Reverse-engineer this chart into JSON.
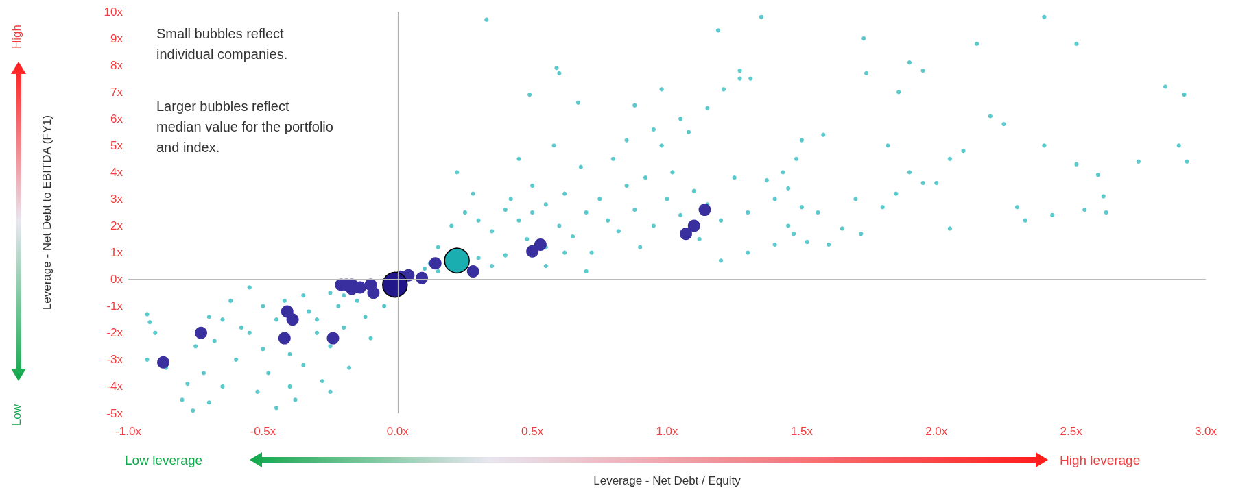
{
  "chart_data": {
    "type": "bubble",
    "xlabel": "Leverage - Net Debt / Equity",
    "ylabel": "Leverage - Net Debt to EBITDA (FY1)",
    "xlim": [
      -1,
      3
    ],
    "ylim": [
      -5,
      10
    ],
    "xticks": [
      {
        "value": -1,
        "label": "-1.0x"
      },
      {
        "value": -0.5,
        "label": "-0.5x"
      },
      {
        "value": 0,
        "label": "0.0x"
      },
      {
        "value": 0.5,
        "label": "0.5x"
      },
      {
        "value": 1,
        "label": "1.0x"
      },
      {
        "value": 1.5,
        "label": "1.5x"
      },
      {
        "value": 2,
        "label": "2.0x"
      },
      {
        "value": 2.5,
        "label": "2.5x"
      },
      {
        "value": 3,
        "label": "3.0x"
      }
    ],
    "yticks": [
      {
        "value": -5,
        "label": "-5x"
      },
      {
        "value": -4,
        "label": "-4x"
      },
      {
        "value": -3,
        "label": "-3x"
      },
      {
        "value": -2,
        "label": "-2x"
      },
      {
        "value": -1,
        "label": "-1x"
      },
      {
        "value": 0,
        "label": "0x"
      },
      {
        "value": 1,
        "label": "1x"
      },
      {
        "value": 2,
        "label": "2x"
      },
      {
        "value": 3,
        "label": "3x"
      },
      {
        "value": 4,
        "label": "4x"
      },
      {
        "value": 5,
        "label": "5x"
      },
      {
        "value": 6,
        "label": "6x"
      },
      {
        "value": 7,
        "label": "7x"
      },
      {
        "value": 8,
        "label": "8x"
      },
      {
        "value": 9,
        "label": "9x"
      },
      {
        "value": 10,
        "label": "10x"
      }
    ],
    "grid": false,
    "marker": "circle",
    "ref_lines": [
      {
        "axis": "x",
        "value": 0,
        "color": "#b0b0b0"
      },
      {
        "axis": "y",
        "value": 0,
        "color": "#bababa"
      }
    ],
    "annotations": [
      "Small bubbles reflect\nindividual companies.",
      "Larger bubbles reflect\nmedian value for the portfolio\nand index.",
      "High",
      "Low",
      "Low leverage",
      "High leverage"
    ],
    "series": [
      {
        "color": "#5cc9cc",
        "x": [
          0.33,
          1.35,
          2.4,
          1.19,
          1.73,
          2.52,
          2.15,
          0.59,
          0.6,
          1.9,
          1.27,
          1.27,
          1.31,
          1.21,
          1.74,
          1.95,
          2.85,
          2.92,
          0.98,
          0.49,
          0.67,
          0.88,
          1.05,
          1.15,
          1.86,
          2.2,
          2.25,
          1.5,
          1.58,
          1.82,
          2.4,
          2.9,
          2.52,
          2.6,
          2.93,
          2.75,
          2.05,
          2.1,
          1.9,
          1.95,
          2.0,
          1.85,
          2.3,
          2.43,
          2.55,
          2.63,
          2.62,
          2.05,
          2.33,
          1.72,
          1.6,
          1.52,
          1.65,
          1.45,
          1.47,
          1.5,
          1.56,
          1.8,
          1.7,
          1.45,
          1.4,
          1.43,
          1.48,
          1.37,
          1.25,
          1.3,
          1.2,
          1.2,
          1.3,
          1.4,
          0.15,
          0.2,
          0.25,
          0.22,
          0.28,
          0.3,
          0.35,
          0.4,
          0.42,
          0.45,
          0.48,
          0.5,
          0.55,
          0.55,
          0.6,
          0.62,
          0.65,
          0.68,
          0.7,
          0.72,
          0.75,
          0.78,
          0.8,
          0.82,
          0.85,
          0.88,
          0.9,
          0.92,
          0.95,
          0.98,
          1.0,
          1.02,
          1.05,
          1.08,
          1.1,
          1.12,
          0.4,
          0.35,
          0.3,
          0.58,
          0.45,
          0.85,
          0.95,
          0.7,
          0.55,
          1.15,
          0.5,
          0.62,
          0.1,
          0.12,
          0.18,
          -0.2,
          -0.25,
          0.15,
          -0.93,
          -0.92,
          -0.93,
          -0.9,
          -0.86,
          -0.8,
          -0.76,
          -0.7,
          -0.78,
          -0.75,
          -0.7,
          -0.72,
          -0.68,
          -0.65,
          -0.6,
          -0.58,
          -0.55,
          -0.52,
          -0.5,
          -0.48,
          -0.45,
          -0.45,
          -0.42,
          -0.4,
          -0.38,
          -0.35,
          -0.33,
          -0.3,
          -0.28,
          -0.25,
          -0.22,
          -0.2,
          -0.18,
          -0.15,
          -0.12,
          -0.1,
          -0.05,
          -0.5,
          -0.55,
          -0.35,
          -0.3,
          -0.62,
          -0.4,
          -0.25,
          -0.65
        ],
        "values": [
          9.7,
          9.8,
          9.8,
          9.3,
          9.0,
          8.8,
          8.8,
          7.9,
          7.7,
          8.1,
          7.8,
          7.5,
          7.5,
          7.1,
          7.7,
          7.8,
          7.2,
          6.9,
          7.1,
          6.9,
          6.6,
          6.5,
          6.0,
          6.4,
          7.0,
          6.1,
          5.8,
          5.2,
          5.4,
          5.0,
          5.0,
          5.0,
          4.3,
          3.9,
          4.4,
          4.4,
          4.5,
          4.8,
          4.0,
          3.6,
          3.6,
          3.2,
          2.7,
          2.4,
          2.6,
          2.5,
          3.1,
          1.9,
          2.2,
          1.7,
          1.3,
          1.4,
          1.9,
          2.0,
          1.7,
          2.7,
          2.5,
          2.7,
          3.0,
          3.4,
          3.0,
          4.0,
          4.5,
          3.7,
          3.8,
          2.5,
          2.2,
          0.7,
          1.0,
          1.3,
          1.2,
          2.0,
          2.5,
          4.0,
          3.2,
          2.2,
          1.8,
          2.6,
          3.0,
          2.2,
          1.5,
          3.5,
          2.8,
          1.2,
          2.0,
          3.2,
          1.6,
          4.2,
          2.5,
          1.0,
          3.0,
          2.2,
          4.5,
          1.8,
          3.5,
          2.6,
          1.2,
          3.8,
          2.0,
          5.0,
          3.0,
          4.0,
          2.4,
          5.5,
          3.3,
          1.5,
          0.9,
          0.5,
          0.8,
          5.0,
          4.5,
          5.2,
          5.6,
          0.3,
          0.5,
          2.8,
          2.5,
          1.0,
          0.4,
          0.6,
          0.7,
          -0.6,
          -0.5,
          0.3,
          -1.3,
          -1.6,
          -3.0,
          -2.0,
          -3.3,
          -4.5,
          -4.9,
          -4.6,
          -3.9,
          -2.5,
          -1.4,
          -3.5,
          -2.3,
          -4.0,
          -3.0,
          -1.8,
          -0.3,
          -4.2,
          -2.6,
          -3.5,
          -1.5,
          -4.8,
          -0.8,
          -2.8,
          -4.5,
          -3.2,
          -1.2,
          -2.0,
          -3.8,
          -2.5,
          -1.0,
          -1.8,
          -3.3,
          -0.8,
          -1.4,
          -2.2,
          -1.0,
          -1.0,
          -2.0,
          -0.6,
          -1.5,
          -0.8,
          -4.0,
          -4.2,
          -1.5
        ],
        "sizes": [
          0.03,
          0.03,
          0.03,
          0.03,
          0.03,
          0.03,
          0.03,
          0.03,
          0.03,
          0.03,
          0.03,
          0.03,
          0.03,
          0.03,
          0.03,
          0.03,
          0.03,
          0.03,
          0.03,
          0.03,
          0.03,
          0.03,
          0.03,
          0.03,
          0.03,
          0.03,
          0.03,
          0.03,
          0.03,
          0.03,
          0.03,
          0.03,
          0.03,
          0.03,
          0.03,
          0.03,
          0.03,
          0.03,
          0.03,
          0.03,
          0.03,
          0.03,
          0.03,
          0.03,
          0.03,
          0.03,
          0.03,
          0.03,
          0.03,
          0.03,
          0.03,
          0.03,
          0.03,
          0.03,
          0.03,
          0.03,
          0.03,
          0.03,
          0.03,
          0.03,
          0.03,
          0.03,
          0.03,
          0.03,
          0.03,
          0.03,
          0.03,
          0.03,
          0.03,
          0.03,
          0.03,
          0.03,
          0.03,
          0.03,
          0.03,
          0.03,
          0.03,
          0.03,
          0.03,
          0.03,
          0.03,
          0.03,
          0.03,
          0.03,
          0.03,
          0.03,
          0.03,
          0.03,
          0.03,
          0.03,
          0.03,
          0.03,
          0.03,
          0.03,
          0.03,
          0.03,
          0.03,
          0.03,
          0.03,
          0.03,
          0.03,
          0.03,
          0.03,
          0.03,
          0.03,
          0.03,
          0.03,
          0.03,
          0.03,
          0.03,
          0.03,
          0.03,
          0.03,
          0.03,
          0.03,
          0.03,
          0.03,
          0.03,
          0.03,
          0.03,
          0.03,
          0.03,
          0.03,
          0.03,
          0.03,
          0.03,
          0.03,
          0.03,
          0.03,
          0.03,
          0.03,
          0.03,
          0.03,
          0.03,
          0.03,
          0.03,
          0.03,
          0.03,
          0.03,
          0.03,
          0.03,
          0.03,
          0.03,
          0.03,
          0.03,
          0.03,
          0.03,
          0.03,
          0.03,
          0.03,
          0.03,
          0.03,
          0.03,
          0.03,
          0.03,
          0.03,
          0.03,
          0.03,
          0.03,
          0.03,
          0.03,
          0.03,
          0.03,
          0.03,
          0.03,
          0.03,
          0.03,
          0.03,
          0.03
        ]
      },
      {
        "color": "#3a2f9e",
        "x": [
          -0.87,
          -0.73,
          -0.41,
          -0.39,
          -0.42,
          -0.24,
          -0.21,
          -0.19,
          -0.17,
          -0.17,
          -0.14,
          -0.1,
          -0.09,
          0.01,
          0.04,
          0.09,
          0.14,
          0.28,
          0.5,
          0.53,
          1.07,
          1.1,
          1.14
        ],
        "values": [
          -3.1,
          -2.0,
          -1.2,
          -1.5,
          -2.2,
          -2.2,
          -0.2,
          -0.2,
          -0.2,
          -0.35,
          -0.3,
          -0.2,
          -0.5,
          0.1,
          0.15,
          0.05,
          0.6,
          0.3,
          1.05,
          1.3,
          1.7,
          2.0,
          2.6
        ],
        "sizes": [
          0.25,
          0.25,
          0.25,
          0.25,
          0.25,
          0.25,
          0.25,
          0.25,
          0.25,
          0.25,
          0.25,
          0.25,
          0.25,
          0.25,
          0.25,
          0.25,
          0.25,
          0.25,
          0.25,
          0.25,
          0.25,
          0.25,
          0.25
        ]
      },
      {
        "color": "#1aaeb0",
        "x": [
          0.22
        ],
        "values": [
          0.7
        ],
        "sizes": [
          1
        ]
      },
      {
        "color": "#21178a",
        "x": [
          -0.01
        ],
        "values": [
          -0.2
        ],
        "sizes": [
          1
        ]
      }
    ]
  }
}
